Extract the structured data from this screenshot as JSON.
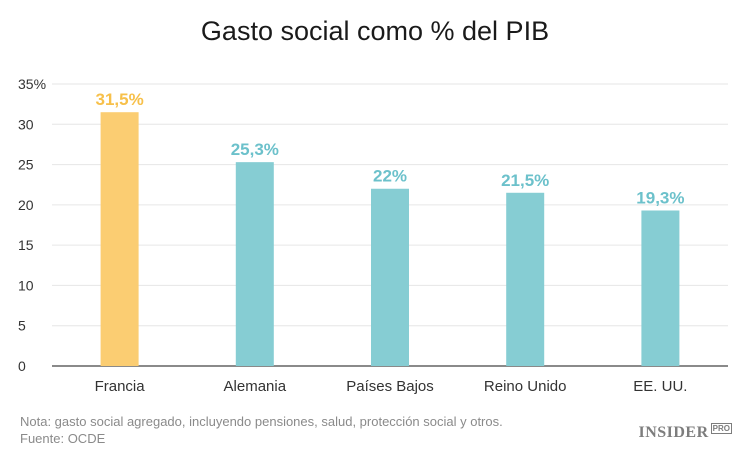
{
  "chart_data": {
    "type": "bar",
    "title": "Gasto social como % del PIB",
    "categories": [
      "Francia",
      "Alemania",
      "Países Bajos",
      "Reino Unido",
      "EE. UU."
    ],
    "values": [
      31.5,
      25.3,
      22,
      21.5,
      19.3
    ],
    "data_labels": [
      "31,5%",
      "25,3%",
      "22%",
      "21,5%",
      "19,3%"
    ],
    "ylim": [
      0,
      35
    ],
    "yticks": [
      0,
      5,
      10,
      15,
      20,
      25,
      30,
      35
    ],
    "ytick_labels": [
      "0",
      "5",
      "10",
      "15",
      "20",
      "25",
      "30",
      "35%"
    ],
    "xlabel": "",
    "ylabel": "",
    "grid": true,
    "legend": "none",
    "colors": {
      "highlight": "#fbcd72",
      "highlight_label": "#f7c04a",
      "bar": "#86cdd3",
      "bar_label": "#6cc1cb",
      "grid": "#e6e6e6",
      "axis": "#444444"
    }
  },
  "footer": {
    "note": "Nota: gasto social agregado, incluyendo pensiones, salud, protección social y otros.",
    "source": "Fuente: OCDE"
  },
  "logo": {
    "text": "INSIDER",
    "sub": "PRO"
  }
}
